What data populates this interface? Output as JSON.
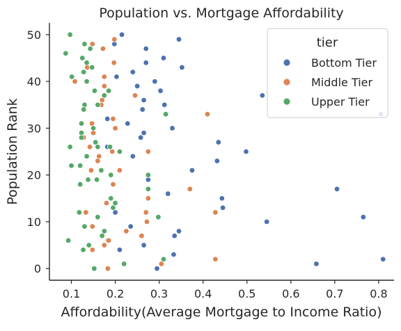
{
  "chart_data": {
    "type": "scatter",
    "title": "Population vs. Mortgage Affordability",
    "xlabel": "Affordability(Average Mortgage to Income Ratio)",
    "ylabel": "Population Rank",
    "xlim": [
      0.05,
      0.835
    ],
    "ylim": [
      -2.5,
      52.5
    ],
    "x_ticks": [
      0.1,
      0.2,
      0.3,
      0.4,
      0.5,
      0.6,
      0.7,
      0.8
    ],
    "y_ticks": [
      0,
      10,
      20,
      30,
      40,
      50
    ],
    "grid": false,
    "legend": {
      "title": "tier",
      "position": "top-right"
    },
    "series": [
      {
        "name": "Bottom Tier",
        "color": "#4c72b0",
        "points": [
          [
            0.215,
            50
          ],
          [
            0.345,
            49
          ],
          [
            0.198,
            48
          ],
          [
            0.27,
            47
          ],
          [
            0.31,
            45
          ],
          [
            0.27,
            44
          ],
          [
            0.352,
            43
          ],
          [
            0.24,
            42
          ],
          [
            0.203,
            41
          ],
          [
            0.29,
            40
          ],
          [
            0.25,
            39
          ],
          [
            0.303,
            38
          ],
          [
            0.535,
            37
          ],
          [
            0.265,
            36
          ],
          [
            0.312,
            35
          ],
          [
            0.262,
            34
          ],
          [
            0.805,
            33
          ],
          [
            0.182,
            32
          ],
          [
            0.228,
            31
          ],
          [
            0.33,
            30
          ],
          [
            0.265,
            29
          ],
          [
            0.258,
            28
          ],
          [
            0.435,
            27
          ],
          [
            0.182,
            26
          ],
          [
            0.498,
            25
          ],
          [
            0.24,
            24
          ],
          [
            0.432,
            23
          ],
          [
            0.375,
            21
          ],
          [
            0.275,
            19
          ],
          [
            0.705,
            17
          ],
          [
            0.32,
            16
          ],
          [
            0.443,
            15
          ],
          [
            0.445,
            13
          ],
          [
            0.2,
            12
          ],
          [
            0.765,
            11
          ],
          [
            0.545,
            10
          ],
          [
            0.235,
            9
          ],
          [
            0.345,
            8
          ],
          [
            0.335,
            7
          ],
          [
            0.183,
            6
          ],
          [
            0.265,
            5
          ],
          [
            0.21,
            4
          ],
          [
            0.333,
            3
          ],
          [
            0.81,
            2
          ],
          [
            0.658,
            1
          ],
          [
            0.295,
            0
          ]
        ]
      },
      {
        "name": "Middle Tier",
        "color": "#dd8452",
        "points": [
          [
            0.198,
            49
          ],
          [
            0.148,
            48
          ],
          [
            0.172,
            47
          ],
          [
            0.197,
            44
          ],
          [
            0.136,
            43
          ],
          [
            0.175,
            41
          ],
          [
            0.108,
            40
          ],
          [
            0.175,
            39
          ],
          [
            0.245,
            37
          ],
          [
            0.17,
            36
          ],
          [
            0.168,
            35
          ],
          [
            0.41,
            33
          ],
          [
            0.195,
            32
          ],
          [
            0.147,
            31
          ],
          [
            0.2,
            30
          ],
          [
            0.15,
            29
          ],
          [
            0.128,
            28
          ],
          [
            0.142,
            26
          ],
          [
            0.193,
            25
          ],
          [
            0.275,
            25
          ],
          [
            0.163,
            24
          ],
          [
            0.16,
            23
          ],
          [
            0.145,
            21
          ],
          [
            0.21,
            21
          ],
          [
            0.195,
            18
          ],
          [
            0.37,
            17
          ],
          [
            0.275,
            15
          ],
          [
            0.18,
            14
          ],
          [
            0.27,
            12
          ],
          [
            0.428,
            12
          ],
          [
            0.133,
            12
          ],
          [
            0.272,
            10
          ],
          [
            0.148,
            9
          ],
          [
            0.225,
            8
          ],
          [
            0.185,
            6
          ],
          [
            0.26,
            7
          ],
          [
            0.175,
            5
          ],
          [
            0.148,
            4
          ],
          [
            0.428,
            2
          ],
          [
            0.305,
            1
          ],
          [
            0.183,
            0
          ]
        ]
      },
      {
        "name": "Upper Tier",
        "color": "#55a868",
        "points": [
          [
            0.097,
            50
          ],
          [
            0.13,
            48
          ],
          [
            0.143,
            47
          ],
          [
            0.087,
            46
          ],
          [
            0.125,
            45
          ],
          [
            0.135,
            44
          ],
          [
            0.147,
            43
          ],
          [
            0.128,
            42
          ],
          [
            0.101,
            41
          ],
          [
            0.135,
            40
          ],
          [
            0.153,
            38
          ],
          [
            0.185,
            38
          ],
          [
            0.175,
            37
          ],
          [
            0.13,
            35
          ],
          [
            0.16,
            35
          ],
          [
            0.128,
            34
          ],
          [
            0.315,
            33
          ],
          [
            0.123,
            31
          ],
          [
            0.15,
            30
          ],
          [
            0.123,
            29
          ],
          [
            0.123,
            28
          ],
          [
            0.155,
            27
          ],
          [
            0.097,
            26
          ],
          [
            0.16,
            26
          ],
          [
            0.188,
            26
          ],
          [
            0.21,
            25
          ],
          [
            0.135,
            24
          ],
          [
            0.12,
            22
          ],
          [
            0.1,
            22
          ],
          [
            0.168,
            21
          ],
          [
            0.19,
            20
          ],
          [
            0.275,
            20
          ],
          [
            0.138,
            19
          ],
          [
            0.158,
            19
          ],
          [
            0.12,
            18
          ],
          [
            0.275,
            17
          ],
          [
            0.19,
            15
          ],
          [
            0.2,
            14
          ],
          [
            0.195,
            13
          ],
          [
            0.118,
            12
          ],
          [
            0.16,
            11
          ],
          [
            0.298,
            11
          ],
          [
            0.13,
            9
          ],
          [
            0.175,
            8
          ],
          [
            0.17,
            7
          ],
          [
            0.093,
            6
          ],
          [
            0.14,
            5
          ],
          [
            0.127,
            4
          ],
          [
            0.31,
            2
          ],
          [
            0.22,
            1
          ],
          [
            0.152,
            0
          ]
        ]
      }
    ]
  }
}
